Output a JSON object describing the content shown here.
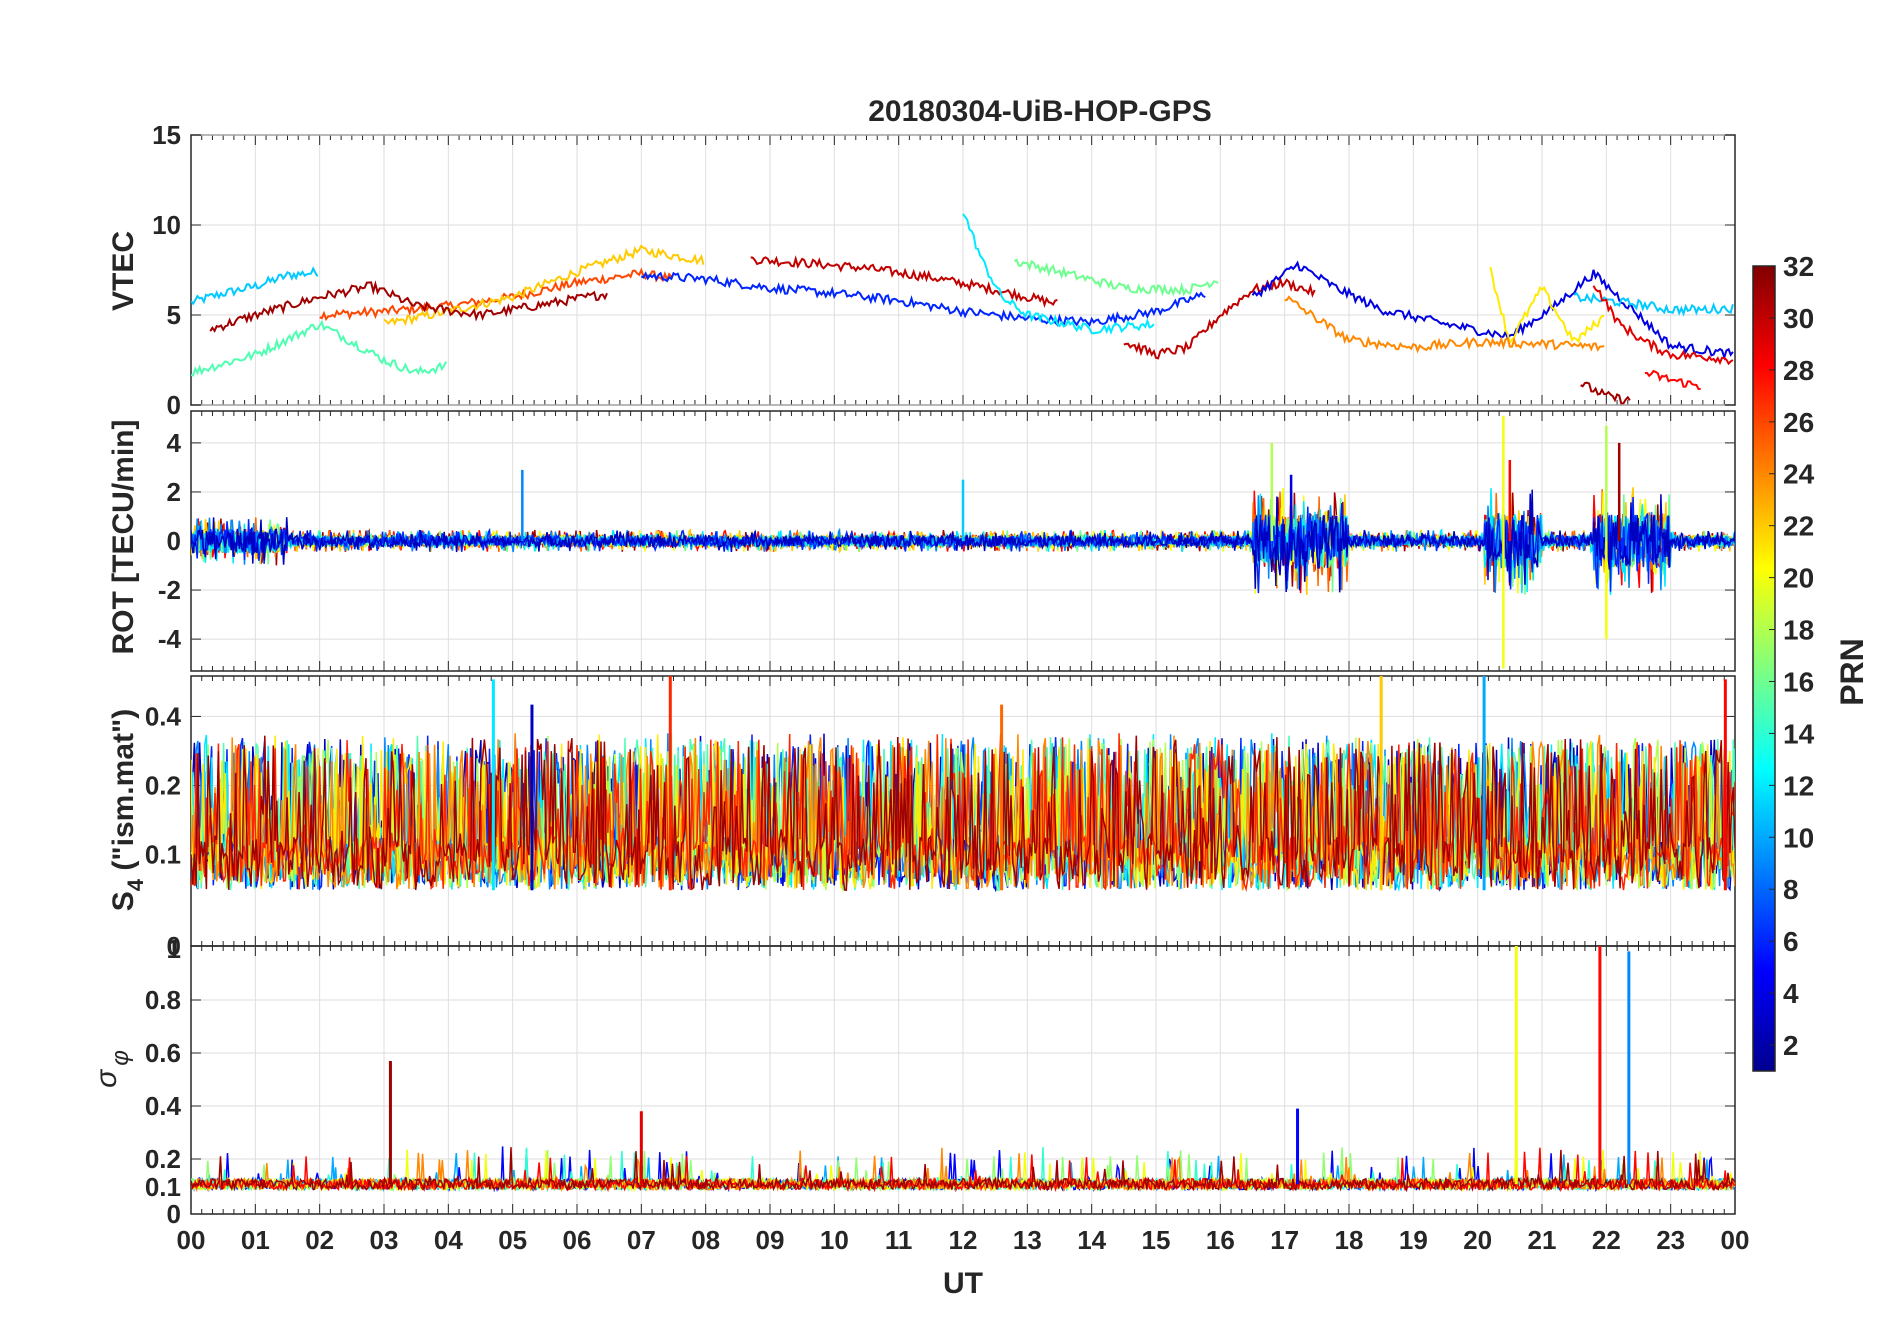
{
  "chart_data": {
    "type": "line",
    "title": "20180304-UiB-HOP-GPS",
    "x": {
      "label": "UT",
      "range_hours": [
        0,
        24
      ],
      "tick_labels": [
        "00",
        "01",
        "02",
        "03",
        "04",
        "05",
        "06",
        "07",
        "08",
        "09",
        "10",
        "11",
        "12",
        "13",
        "14",
        "15",
        "16",
        "17",
        "18",
        "19",
        "20",
        "21",
        "22",
        "23",
        "00"
      ]
    },
    "grid": true,
    "colorbar": {
      "label": "PRN",
      "range": [
        1,
        32
      ],
      "colormap": "jet",
      "placement": "right",
      "tick_labels": [
        "2",
        "4",
        "6",
        "8",
        "10",
        "12",
        "14",
        "16",
        "18",
        "20",
        "22",
        "24",
        "26",
        "28",
        "30",
        "32"
      ]
    },
    "panels": [
      {
        "id": "vtec",
        "ylabel": "VTEC",
        "ylim": [
          0,
          15
        ],
        "yticks": [
          0,
          5,
          10,
          15
        ],
        "ytick_labels": [
          "0",
          "5",
          "10",
          "15"
        ],
        "series": [
          {
            "prn": 11,
            "x": [
              0,
              0.5,
              1,
              1.5,
              2
            ],
            "y": [
              5.7,
              6.2,
              6.6,
              7.2,
              7.4
            ]
          },
          {
            "prn": 26,
            "x": [
              2,
              3,
              4,
              5,
              6,
              7,
              7.5
            ],
            "y": [
              5.0,
              5.2,
              5.5,
              6.0,
              6.8,
              7.3,
              7.0
            ]
          },
          {
            "prn": 22,
            "x": [
              3,
              4,
              5,
              6,
              7,
              8
            ],
            "y": [
              4.5,
              5.2,
              6.0,
              7.4,
              8.6,
              8.0
            ]
          },
          {
            "prn": 30,
            "x": [
              8.7,
              9.5,
              10.5,
              11.5,
              12.5,
              13.5
            ],
            "y": [
              8.1,
              7.9,
              7.6,
              7.1,
              6.4,
              5.6
            ]
          },
          {
            "prn": 31,
            "x": [
              0.3,
              1,
              2,
              2.8,
              3.5,
              4.5,
              5.5,
              6.5
            ],
            "y": [
              4.2,
              5.0,
              6.0,
              6.6,
              5.5,
              5.0,
              5.6,
              6.2
            ]
          },
          {
            "prn": 15,
            "x": [
              0,
              1,
              2,
              3,
              3.5,
              4
            ],
            "y": [
              1.8,
              2.8,
              4.5,
              2.5,
              1.8,
              2.2
            ]
          },
          {
            "prn": 6,
            "x": [
              7,
              8,
              9,
              10,
              11,
              12,
              13,
              14,
              15,
              15.8
            ],
            "y": [
              7.2,
              7.0,
              6.5,
              6.2,
              5.8,
              5.2,
              4.8,
              4.6,
              5.2,
              6.2
            ]
          },
          {
            "prn": 12,
            "x": [
              12,
              12.3,
              12.6,
              13,
              14,
              15
            ],
            "y": [
              10.8,
              8.0,
              6.0,
              5.0,
              4.2,
              4.5
            ]
          },
          {
            "prn": 16,
            "x": [
              12.8,
              13.5,
              14.5,
              15.5,
              16
            ],
            "y": [
              8.0,
              7.4,
              6.5,
              6.4,
              7.0
            ]
          },
          {
            "prn": 30,
            "x": [
              14.5,
              15,
              15.5,
              16,
              16.5,
              17,
              17.5
            ],
            "y": [
              3.5,
              2.8,
              3.2,
              5.0,
              6.4,
              6.8,
              6.2
            ]
          },
          {
            "prn": 4,
            "x": [
              16.5,
              17.2,
              17.8,
              18.5,
              19.5,
              20.5,
              21.2,
              21.8,
              22.5,
              23,
              24
            ],
            "y": [
              6.0,
              7.8,
              6.5,
              5.3,
              4.5,
              3.8,
              5.5,
              7.3,
              5.0,
              3.3,
              2.8
            ]
          },
          {
            "prn": 11,
            "x": [
              21.5,
              22,
              22.5,
              23,
              23.5,
              24
            ],
            "y": [
              6.0,
              5.8,
              5.6,
              5.3,
              5.3,
              5.4
            ]
          },
          {
            "prn": 21,
            "x": [
              20.2,
              20.5,
              21,
              21.5,
              22
            ],
            "y": [
              7.5,
              3.5,
              6.5,
              3.5,
              5.0
            ]
          },
          {
            "prn": 29,
            "x": [
              21.8,
              22.2,
              22.6,
              23,
              23.5,
              24
            ],
            "y": [
              6.8,
              4.5,
              3.5,
              2.8,
              2.7,
              2.5
            ]
          },
          {
            "prn": 31,
            "x": [
              21.6,
              22,
              22.4
            ],
            "y": [
              1.2,
              0.5,
              0.2
            ]
          },
          {
            "prn": 28,
            "x": [
              22.6,
              23,
              23.5
            ],
            "y": [
              1.8,
              1.4,
              1.0
            ]
          },
          {
            "prn": 24,
            "x": [
              17,
              18,
              19,
              20,
              21,
              22
            ],
            "y": [
              6.0,
              3.6,
              3.2,
              3.5,
              3.4,
              3.2
            ]
          }
        ]
      },
      {
        "id": "rot",
        "ylabel": "ROT [TECU/min]",
        "ylim": [
          -5.3,
          5.3
        ],
        "yticks": [
          -4,
          -2,
          0,
          2,
          4
        ],
        "ytick_labels": [
          "-4",
          "-2",
          "0",
          "2",
          "4"
        ],
        "spikes": [
          {
            "prn": 9,
            "x": 5.15,
            "y": 2.9
          },
          {
            "prn": 20,
            "x": 20.4,
            "y": 5.1
          },
          {
            "prn": 20,
            "x": 20.4,
            "y": -5.2
          },
          {
            "prn": 28,
            "x": 20.5,
            "y": 3.3
          },
          {
            "prn": 18,
            "x": 22.0,
            "y": 4.7
          },
          {
            "prn": 20,
            "x": 22.0,
            "y": -4.0
          },
          {
            "prn": 31,
            "x": 22.2,
            "y": 4.0
          },
          {
            "prn": 4,
            "x": 17.1,
            "y": 2.7
          },
          {
            "prn": 18,
            "x": 16.8,
            "y": 4.0
          },
          {
            "prn": 11,
            "x": 12.0,
            "y": 2.5
          }
        ]
      },
      {
        "id": "s4",
        "ylabel_main": "S",
        "ylabel_sub": "4",
        "ylabel_rest": " (\"ism.mat\")",
        "ylim": [
          0.04,
          0.6
        ],
        "yticks": [
          0.1,
          0.2,
          0.4
        ],
        "ytick_labels": [
          "0.1",
          "0.2",
          "0.4"
        ],
        "ytick_bottom_label": "0",
        "baseline": 0.07,
        "peaks": [
          {
            "prn": 27,
            "x": 7.45,
            "y": 0.6
          },
          {
            "prn": 12,
            "x": 4.7,
            "y": 0.58
          },
          {
            "prn": 22,
            "x": 18.5,
            "y": 0.6
          },
          {
            "prn": 10,
            "x": 20.1,
            "y": 0.6
          },
          {
            "prn": 28,
            "x": 23.85,
            "y": 0.58
          },
          {
            "prn": 25,
            "x": 12.6,
            "y": 0.45
          },
          {
            "prn": 3,
            "x": 5.3,
            "y": 0.45
          }
        ]
      },
      {
        "id": "sigma",
        "ylabel_main": "σ",
        "ylabel_sub": "φ",
        "ylim": [
          0,
          1
        ],
        "yticks": [
          0,
          0.1,
          0.2,
          0.4,
          0.6,
          0.8
        ],
        "ytick_labels": [
          "0",
          "0.1",
          "0.2",
          "0.4",
          "0.6",
          "0.8"
        ],
        "ytick_top_label": "1",
        "baseline": 0.11,
        "peaks": [
          {
            "prn": 31,
            "x": 3.1,
            "y": 0.57
          },
          {
            "prn": 20,
            "x": 20.6,
            "y": 1.0
          },
          {
            "prn": 28,
            "x": 21.9,
            "y": 1.0
          },
          {
            "prn": 9,
            "x": 22.35,
            "y": 0.98
          },
          {
            "prn": 5,
            "x": 17.2,
            "y": 0.39
          },
          {
            "prn": 29,
            "x": 7.0,
            "y": 0.38
          }
        ]
      }
    ]
  }
}
